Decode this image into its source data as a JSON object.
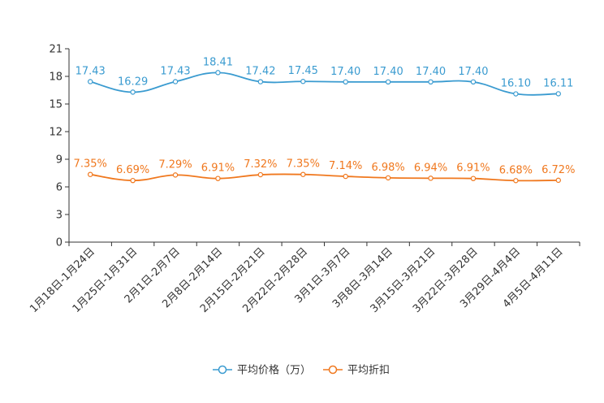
{
  "chart_data": {
    "type": "line",
    "title": "",
    "xlabel": "",
    "ylabel": "",
    "ylim": [
      0,
      21
    ],
    "yticks": [
      0,
      3,
      6,
      9,
      12,
      15,
      18,
      21
    ],
    "grid": false,
    "legend_position": "bottom",
    "categories": [
      "1月18日-1月24日",
      "1月25日-1月31日",
      "2月1日-2月7日",
      "2月8日-2月14日",
      "2月15日-2月21日",
      "2月22日-2月28日",
      "3月1日-3月7日",
      "3月8日-3月14日",
      "3月15日-3月21日",
      "3月22日-3月28日",
      "3月29日-4月4日",
      "4月5日-4月11日"
    ],
    "series": [
      {
        "name": "平均价格（万）",
        "color": "#3a9bd0",
        "values": [
          17.43,
          16.29,
          17.43,
          18.41,
          17.42,
          17.45,
          17.4,
          17.4,
          17.4,
          17.4,
          16.1,
          16.11
        ],
        "labels": [
          "17.43",
          "16.29",
          "17.43",
          "18.41",
          "17.42",
          "17.45",
          "17.40",
          "17.40",
          "17.40",
          "17.40",
          "16.10",
          "16.11"
        ]
      },
      {
        "name": "平均折扣",
        "color": "#f0781e",
        "values": [
          7.35,
          6.69,
          7.29,
          6.91,
          7.32,
          7.35,
          7.14,
          6.98,
          6.94,
          6.91,
          6.68,
          6.72
        ],
        "labels": [
          "7.35%",
          "6.69%",
          "7.29%",
          "6.91%",
          "7.32%",
          "7.35%",
          "7.14%",
          "6.98%",
          "6.94%",
          "6.91%",
          "6.68%",
          "6.72%"
        ]
      }
    ]
  }
}
